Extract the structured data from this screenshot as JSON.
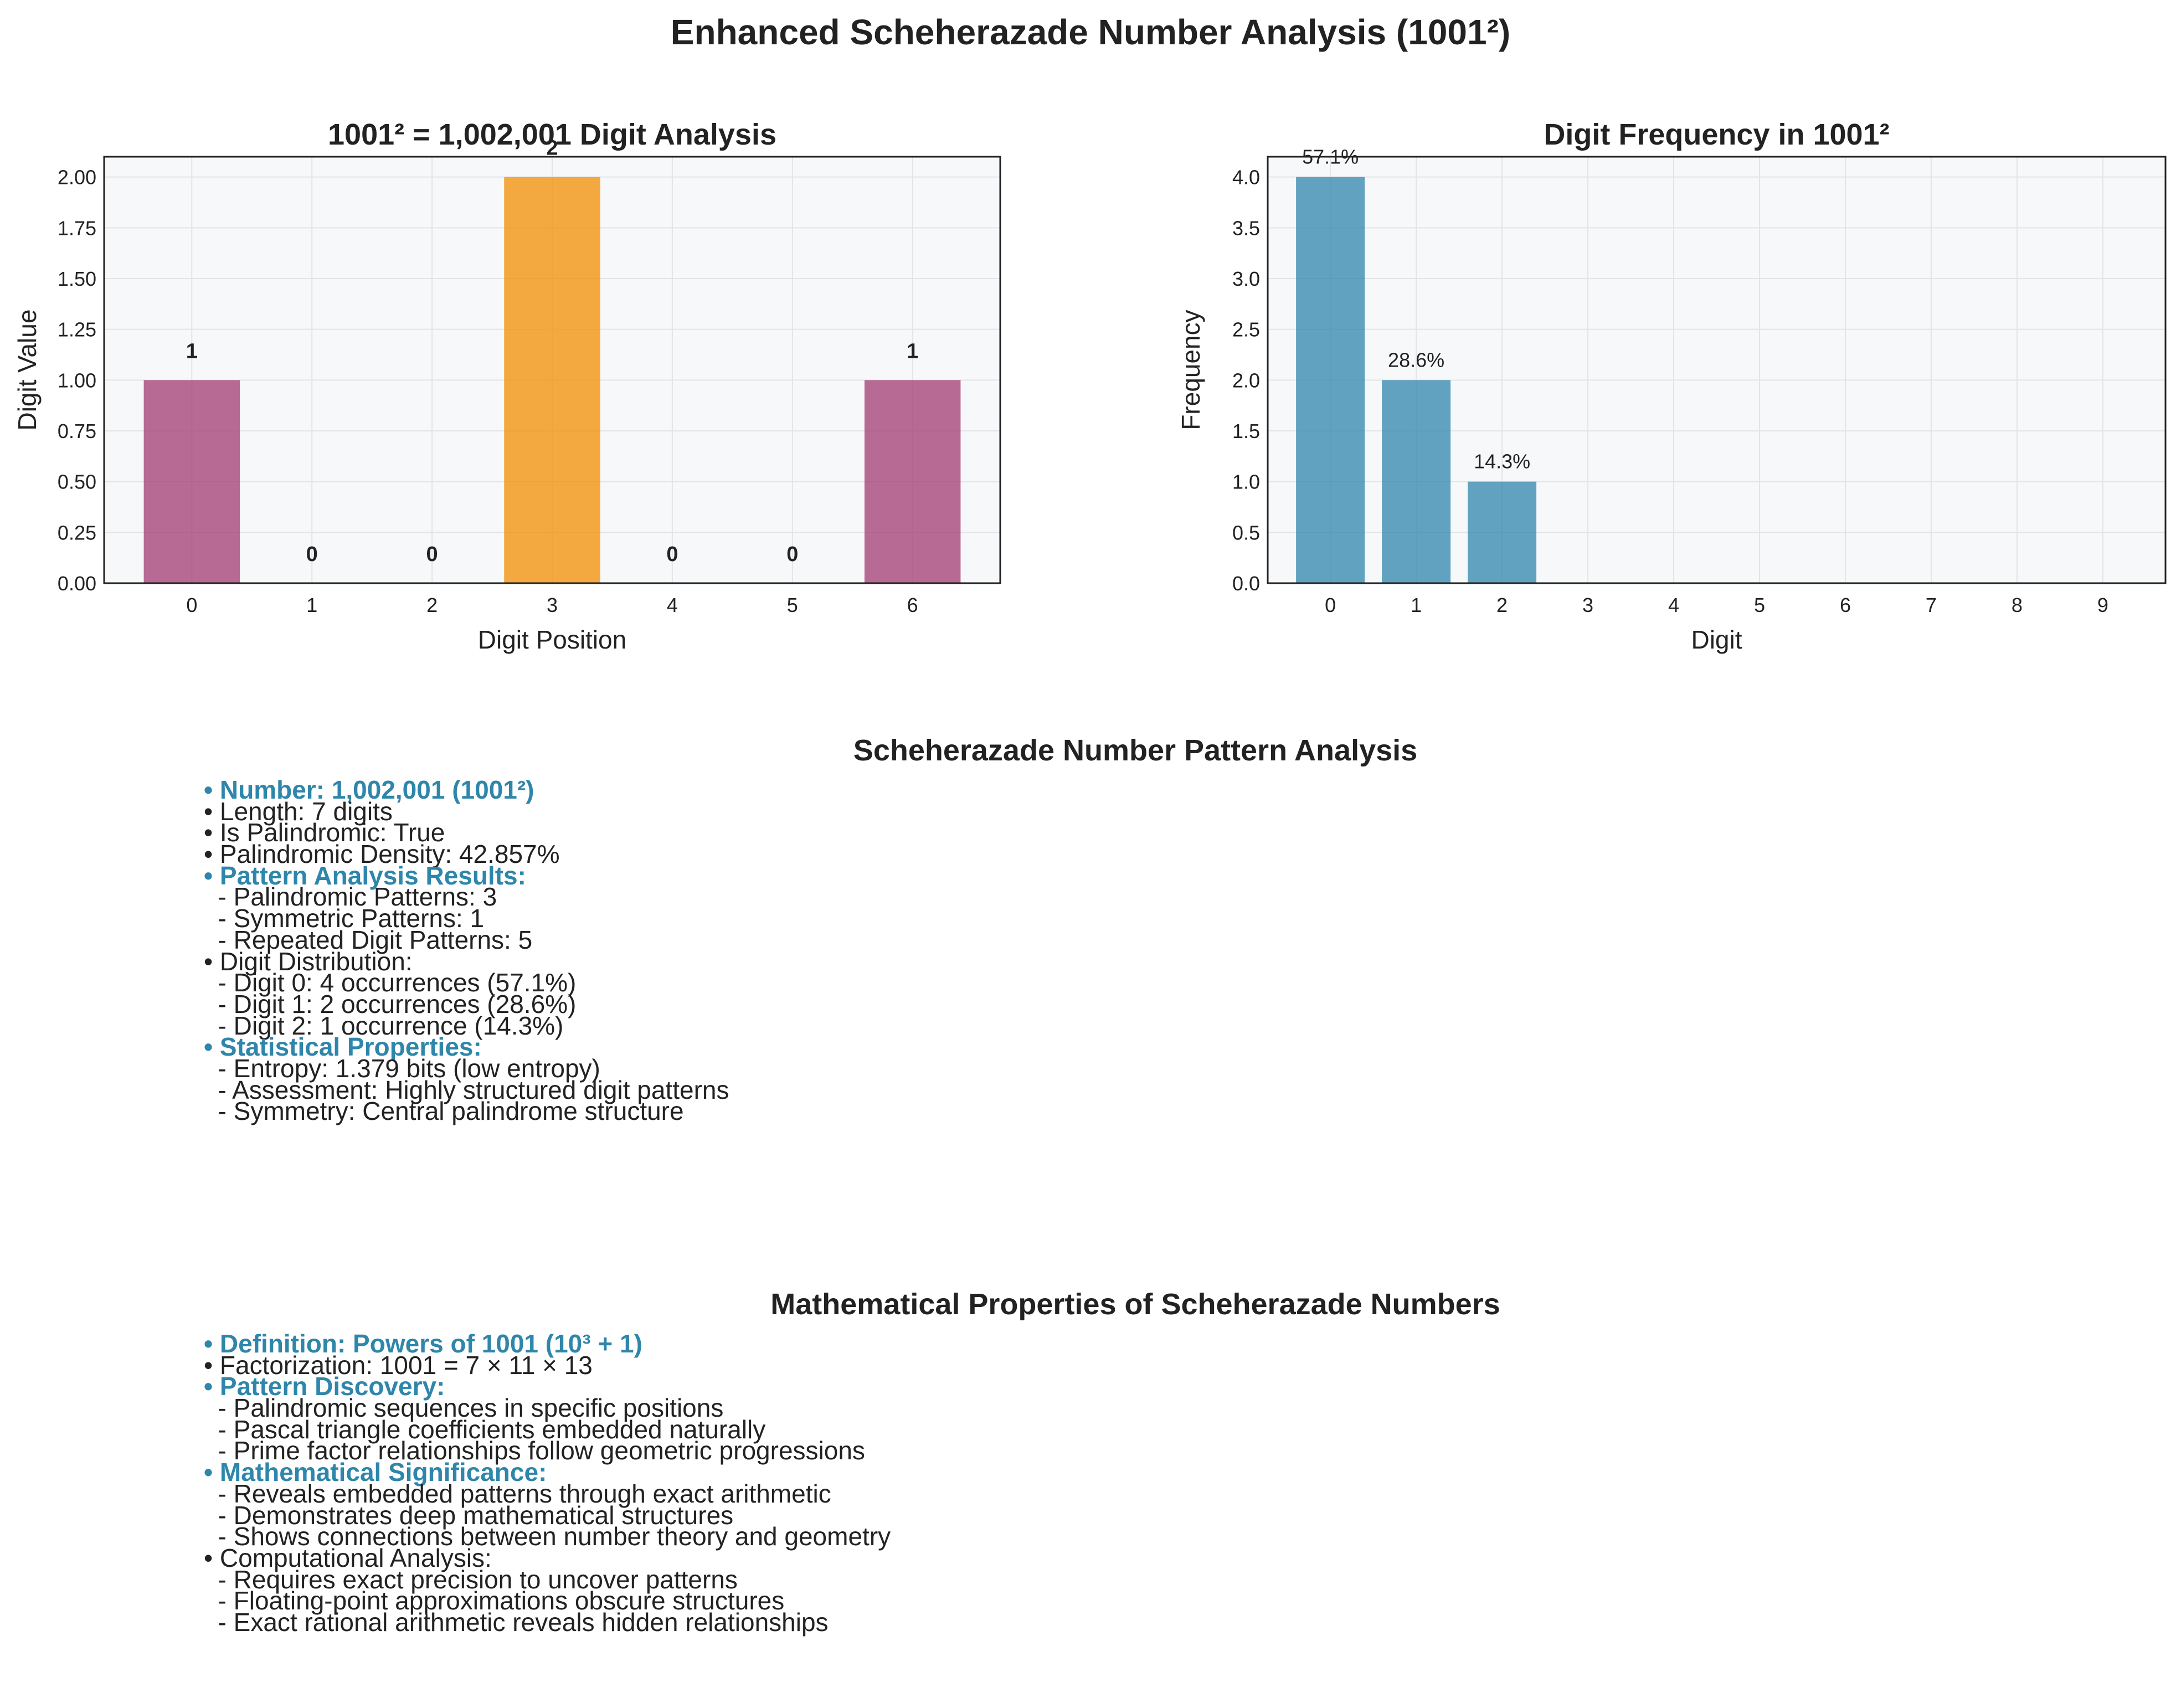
{
  "figure": {
    "title": "Enhanced Scheherazade Number Analysis (1001²)"
  },
  "colors": {
    "plot_bg": "#f7f8fa",
    "grid": "#e2e4e8",
    "digit_one": "#a23b72",
    "digit_two": "#f18f01",
    "frequency": "#2e86ab",
    "highlight_text": "#2e86ab",
    "text": "#222222"
  },
  "chart_data": [
    {
      "type": "bar",
      "title": "1001² = 1,002,001 Digit Analysis",
      "xlabel": "Digit Position",
      "ylabel": "Digit Value",
      "categories": [
        "0",
        "1",
        "2",
        "3",
        "4",
        "5",
        "6"
      ],
      "values": [
        1,
        0,
        0,
        2,
        0,
        0,
        1
      ],
      "value_labels": [
        "1",
        "0",
        "0",
        "2",
        "0",
        "0",
        "1"
      ],
      "bar_colors": [
        "#a23b72",
        "#a23b72",
        "#a23b72",
        "#f18f01",
        "#a23b72",
        "#a23b72",
        "#a23b72"
      ],
      "ylim": [
        0,
        2.1
      ],
      "yticks": [
        "0.00",
        "0.25",
        "0.50",
        "0.75",
        "1.00",
        "1.25",
        "1.50",
        "1.75",
        "2.00"
      ],
      "ytick_values": [
        0,
        0.25,
        0.5,
        0.75,
        1.0,
        1.25,
        1.5,
        1.75,
        2.0
      ],
      "grid": true
    },
    {
      "type": "bar",
      "title": "Digit Frequency in 1001²",
      "xlabel": "Digit",
      "ylabel": "Frequency",
      "categories": [
        "0",
        "1",
        "2",
        "3",
        "4",
        "5",
        "6",
        "7",
        "8",
        "9"
      ],
      "values": [
        4,
        2,
        1,
        0,
        0,
        0,
        0,
        0,
        0,
        0
      ],
      "value_labels": [
        "57.1%",
        "28.6%",
        "14.3%",
        "",
        "",
        "",
        "",
        "",
        "",
        ""
      ],
      "bar_colors": [
        "#2e86ab"
      ],
      "ylim": [
        0,
        4.2
      ],
      "yticks": [
        "0.0",
        "0.5",
        "1.0",
        "1.5",
        "2.0",
        "2.5",
        "3.0",
        "3.5",
        "4.0"
      ],
      "ytick_values": [
        0,
        0.5,
        1.0,
        1.5,
        2.0,
        2.5,
        3.0,
        3.5,
        4.0
      ],
      "grid": true
    }
  ],
  "pattern_section": {
    "title": "Scheherazade Number Pattern Analysis",
    "lines": [
      {
        "text": "• Number: 1,002,001 (1001²)",
        "highlight": true
      },
      {
        "text": "• Length: 7 digits",
        "highlight": false
      },
      {
        "text": "• Is Palindromic: True",
        "highlight": false
      },
      {
        "text": "• Palindromic Density: 42.857%",
        "highlight": false
      },
      {
        "text": "• Pattern Analysis Results:",
        "highlight": true
      },
      {
        "text": "  - Palindromic Patterns: 3",
        "highlight": false
      },
      {
        "text": "  - Symmetric Patterns: 1",
        "highlight": false
      },
      {
        "text": "  - Repeated Digit Patterns: 5",
        "highlight": false
      },
      {
        "text": "• Digit Distribution:",
        "highlight": false
      },
      {
        "text": "  - Digit 0: 4 occurrences (57.1%)",
        "highlight": false
      },
      {
        "text": "  - Digit 1: 2 occurrences (28.6%)",
        "highlight": false
      },
      {
        "text": "  - Digit 2: 1 occurrence (14.3%)",
        "highlight": false
      },
      {
        "text": "• Statistical Properties:",
        "highlight": true
      },
      {
        "text": "  - Entropy: 1.379 bits (low entropy)",
        "highlight": false
      },
      {
        "text": "  - Assessment: Highly structured digit patterns",
        "highlight": false
      },
      {
        "text": "  - Symmetry: Central palindrome structure",
        "highlight": false
      }
    ]
  },
  "math_section": {
    "title": "Mathematical Properties of Scheherazade Numbers",
    "lines": [
      {
        "text": "• Definition: Powers of 1001 (10³ + 1)",
        "highlight": true
      },
      {
        "text": "• Factorization: 1001 = 7 × 11 × 13",
        "highlight": false
      },
      {
        "text": "• Pattern Discovery:",
        "highlight": true
      },
      {
        "text": "  - Palindromic sequences in specific positions",
        "highlight": false
      },
      {
        "text": "  - Pascal triangle coefficients embedded naturally",
        "highlight": false
      },
      {
        "text": "  - Prime factor relationships follow geometric progressions",
        "highlight": false
      },
      {
        "text": "• Mathematical Significance:",
        "highlight": true
      },
      {
        "text": "  - Reveals embedded patterns through exact arithmetic",
        "highlight": false
      },
      {
        "text": "  - Demonstrates deep mathematical structures",
        "highlight": false
      },
      {
        "text": "  - Shows connections between number theory and geometry",
        "highlight": false
      },
      {
        "text": "• Computational Analysis:",
        "highlight": false
      },
      {
        "text": "  - Requires exact precision to uncover patterns",
        "highlight": false
      },
      {
        "text": "  - Floating-point approximations obscure structures",
        "highlight": false
      },
      {
        "text": "  - Exact rational arithmetic reveals hidden relationships",
        "highlight": false
      }
    ]
  }
}
